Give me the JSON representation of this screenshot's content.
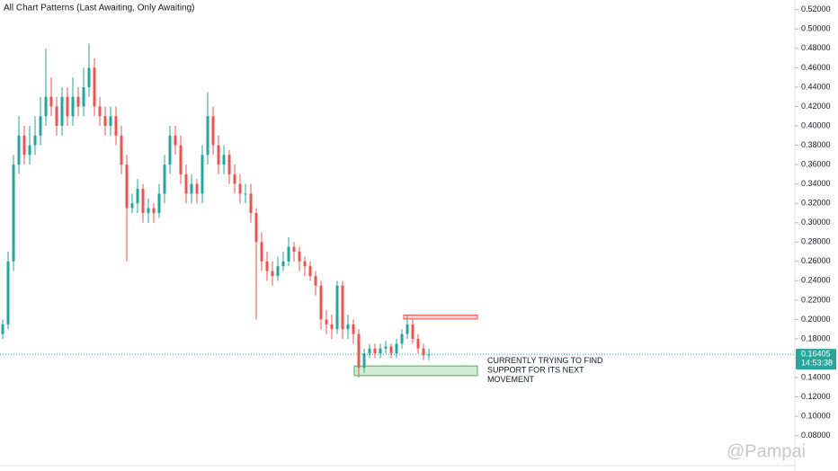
{
  "chart_data": {
    "type": "candlestick",
    "subtitle": "All Chart Patterns (Last Awaiting, Only Awaiting)",
    "watermark": "@Pampai",
    "annotation": "CURRENTLY TRYING TO FIND SUPPORT FOR ITS NEXT MOVEMENT",
    "up_color": "#26a69a",
    "down_color": "#ef5350",
    "ylim": [
      0.05,
      0.53
    ],
    "yticks": [
      {
        "value": 0.08,
        "label": "0.08000"
      },
      {
        "value": 0.1,
        "label": "0.10000"
      },
      {
        "value": 0.12,
        "label": "0.12000"
      },
      {
        "value": 0.14,
        "label": "0.14000"
      },
      {
        "value": 0.16,
        "label": "0.16000"
      },
      {
        "value": 0.18,
        "label": "0.18000"
      },
      {
        "value": 0.2,
        "label": "0.20000"
      },
      {
        "value": 0.22,
        "label": "0.22000"
      },
      {
        "value": 0.24,
        "label": "0.24000"
      },
      {
        "value": 0.26,
        "label": "0.26000"
      },
      {
        "value": 0.28,
        "label": "0.28000"
      },
      {
        "value": 0.3,
        "label": "0.30000"
      },
      {
        "value": 0.32,
        "label": "0.32000"
      },
      {
        "value": 0.34,
        "label": "0.34000"
      },
      {
        "value": 0.36,
        "label": "0.36000"
      },
      {
        "value": 0.38,
        "label": "0.38000"
      },
      {
        "value": 0.4,
        "label": "0.40000"
      },
      {
        "value": 0.42,
        "label": "0.42000"
      },
      {
        "value": 0.44,
        "label": "0.44000"
      },
      {
        "value": 0.46,
        "label": "0.46000"
      },
      {
        "value": 0.48,
        "label": "0.48000"
      },
      {
        "value": 0.5,
        "label": "0.50000"
      },
      {
        "value": 0.52,
        "label": "0.52000"
      }
    ],
    "current_price": {
      "value": 0.16405,
      "label": "0.16405",
      "countdown": "14:53:38"
    },
    "resistance_zone": {
      "top": 0.2045,
      "bottom": 0.2005,
      "color": "#ef5350"
    },
    "support_zone": {
      "top": 0.152,
      "bottom": 0.142,
      "color": "#4caf50"
    },
    "open": [
      0.185,
      0.195,
      0.26,
      0.36,
      0.39,
      0.37,
      0.38,
      0.39,
      0.41,
      0.43,
      0.42,
      0.4,
      0.43,
      0.41,
      0.43,
      0.42,
      0.44,
      0.46,
      0.42,
      0.41,
      0.4,
      0.41,
      0.39,
      0.36,
      0.315,
      0.32,
      0.335,
      0.31,
      0.315,
      0.31,
      0.33,
      0.36,
      0.39,
      0.38,
      0.35,
      0.33,
      0.34,
      0.33,
      0.37,
      0.41,
      0.38,
      0.36,
      0.37,
      0.35,
      0.34,
      0.33,
      0.33,
      0.31,
      0.28,
      0.26,
      0.25,
      0.245,
      0.255,
      0.26,
      0.275,
      0.27,
      0.26,
      0.255,
      0.245,
      0.235,
      0.2,
      0.195,
      0.19,
      0.235,
      0.19,
      0.195,
      0.185,
      0.15,
      0.165,
      0.17,
      0.165,
      0.17,
      0.172,
      0.165,
      0.175,
      0.185,
      0.195,
      0.18,
      0.17,
      0.163
    ],
    "high": [
      0.2,
      0.27,
      0.37,
      0.41,
      0.4,
      0.4,
      0.41,
      0.43,
      0.48,
      0.45,
      0.43,
      0.44,
      0.44,
      0.45,
      0.44,
      0.46,
      0.485,
      0.47,
      0.43,
      0.42,
      0.42,
      0.42,
      0.4,
      0.37,
      0.33,
      0.345,
      0.34,
      0.325,
      0.32,
      0.34,
      0.37,
      0.4,
      0.4,
      0.39,
      0.36,
      0.35,
      0.345,
      0.38,
      0.435,
      0.42,
      0.39,
      0.38,
      0.375,
      0.36,
      0.35,
      0.34,
      0.34,
      0.315,
      0.29,
      0.27,
      0.26,
      0.265,
      0.27,
      0.285,
      0.28,
      0.275,
      0.265,
      0.26,
      0.25,
      0.24,
      0.21,
      0.205,
      0.24,
      0.24,
      0.205,
      0.2,
      0.19,
      0.17,
      0.175,
      0.175,
      0.175,
      0.178,
      0.175,
      0.18,
      0.19,
      0.205,
      0.2,
      0.185,
      0.175,
      0.17
    ],
    "low": [
      0.18,
      0.19,
      0.25,
      0.35,
      0.36,
      0.36,
      0.37,
      0.38,
      0.4,
      0.41,
      0.39,
      0.39,
      0.4,
      0.4,
      0.41,
      0.41,
      0.43,
      0.41,
      0.4,
      0.39,
      0.39,
      0.38,
      0.35,
      0.26,
      0.31,
      0.31,
      0.3,
      0.3,
      0.3,
      0.305,
      0.32,
      0.35,
      0.37,
      0.34,
      0.32,
      0.32,
      0.32,
      0.32,
      0.36,
      0.37,
      0.35,
      0.35,
      0.34,
      0.33,
      0.32,
      0.32,
      0.3,
      0.2,
      0.25,
      0.24,
      0.235,
      0.24,
      0.25,
      0.255,
      0.26,
      0.25,
      0.245,
      0.24,
      0.225,
      0.19,
      0.185,
      0.18,
      0.185,
      0.18,
      0.18,
      0.175,
      0.14,
      0.145,
      0.16,
      0.16,
      0.16,
      0.165,
      0.16,
      0.16,
      0.17,
      0.18,
      0.175,
      0.165,
      0.158,
      0.158
    ],
    "close": [
      0.195,
      0.26,
      0.36,
      0.39,
      0.37,
      0.38,
      0.39,
      0.41,
      0.43,
      0.42,
      0.4,
      0.43,
      0.41,
      0.43,
      0.42,
      0.44,
      0.46,
      0.42,
      0.41,
      0.4,
      0.41,
      0.39,
      0.36,
      0.315,
      0.32,
      0.335,
      0.31,
      0.315,
      0.31,
      0.33,
      0.36,
      0.39,
      0.38,
      0.35,
      0.33,
      0.34,
      0.33,
      0.37,
      0.41,
      0.38,
      0.36,
      0.37,
      0.35,
      0.34,
      0.33,
      0.33,
      0.31,
      0.28,
      0.26,
      0.25,
      0.245,
      0.255,
      0.26,
      0.275,
      0.27,
      0.26,
      0.255,
      0.245,
      0.235,
      0.2,
      0.195,
      0.19,
      0.235,
      0.19,
      0.195,
      0.185,
      0.15,
      0.165,
      0.17,
      0.165,
      0.17,
      0.172,
      0.165,
      0.175,
      0.185,
      0.195,
      0.18,
      0.17,
      0.163,
      0.164
    ]
  }
}
